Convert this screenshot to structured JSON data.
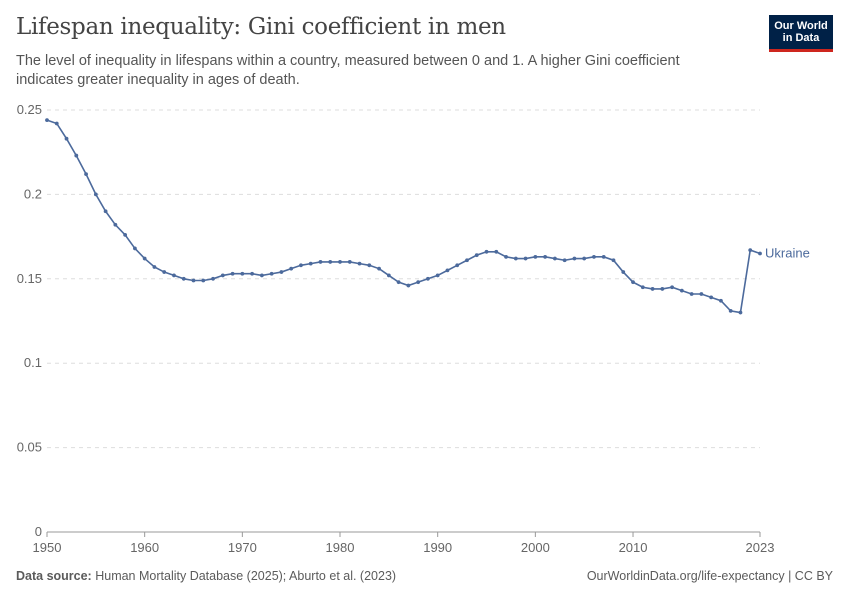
{
  "header": {
    "title": "Lifespan inequality: Gini coefficient in men",
    "subtitle": "The level of inequality in lifespans within a country, measured between 0 and 1. A higher Gini coefficient indicates greater inequality in ages of death.",
    "logo": "Our World in Data"
  },
  "footer": {
    "source_label": "Data source:",
    "source": "Human Mortality Database (2025); Aburto et al. (2023)",
    "link": "OurWorldinData.org/life-expectancy | CC BY"
  },
  "chart_data": {
    "type": "line",
    "title": "Lifespan inequality: Gini coefficient in men",
    "xlabel": "",
    "ylabel": "",
    "xlim": [
      1950,
      2023
    ],
    "ylim": [
      0,
      0.25
    ],
    "x_ticks": [
      "1950",
      "1960",
      "1970",
      "1980",
      "1990",
      "2000",
      "2010",
      "2023"
    ],
    "y_ticks": [
      "0",
      "0.05",
      "0.1",
      "0.15",
      "0.2",
      "0.25"
    ],
    "grid": "horizontal dashed",
    "color": "#4c6a9c",
    "series": [
      {
        "name": "Ukraine",
        "x_start": 1950,
        "values": [
          0.244,
          0.242,
          0.233,
          0.223,
          0.212,
          0.2,
          0.19,
          0.182,
          0.176,
          0.168,
          0.162,
          0.157,
          0.154,
          0.152,
          0.15,
          0.149,
          0.149,
          0.15,
          0.152,
          0.153,
          0.153,
          0.153,
          0.152,
          0.153,
          0.154,
          0.156,
          0.158,
          0.159,
          0.16,
          0.16,
          0.16,
          0.16,
          0.159,
          0.158,
          0.156,
          0.152,
          0.148,
          0.146,
          0.148,
          0.15,
          0.152,
          0.155,
          0.158,
          0.161,
          0.164,
          0.166,
          0.166,
          0.163,
          0.162,
          0.162,
          0.163,
          0.163,
          0.162,
          0.161,
          0.162,
          0.162,
          0.163,
          0.163,
          0.161,
          0.154,
          0.148,
          0.145,
          0.144,
          0.144,
          0.145,
          0.143,
          0.141,
          0.141,
          0.139,
          0.137,
          0.131,
          0.13,
          0.167,
          0.165
        ]
      }
    ]
  }
}
